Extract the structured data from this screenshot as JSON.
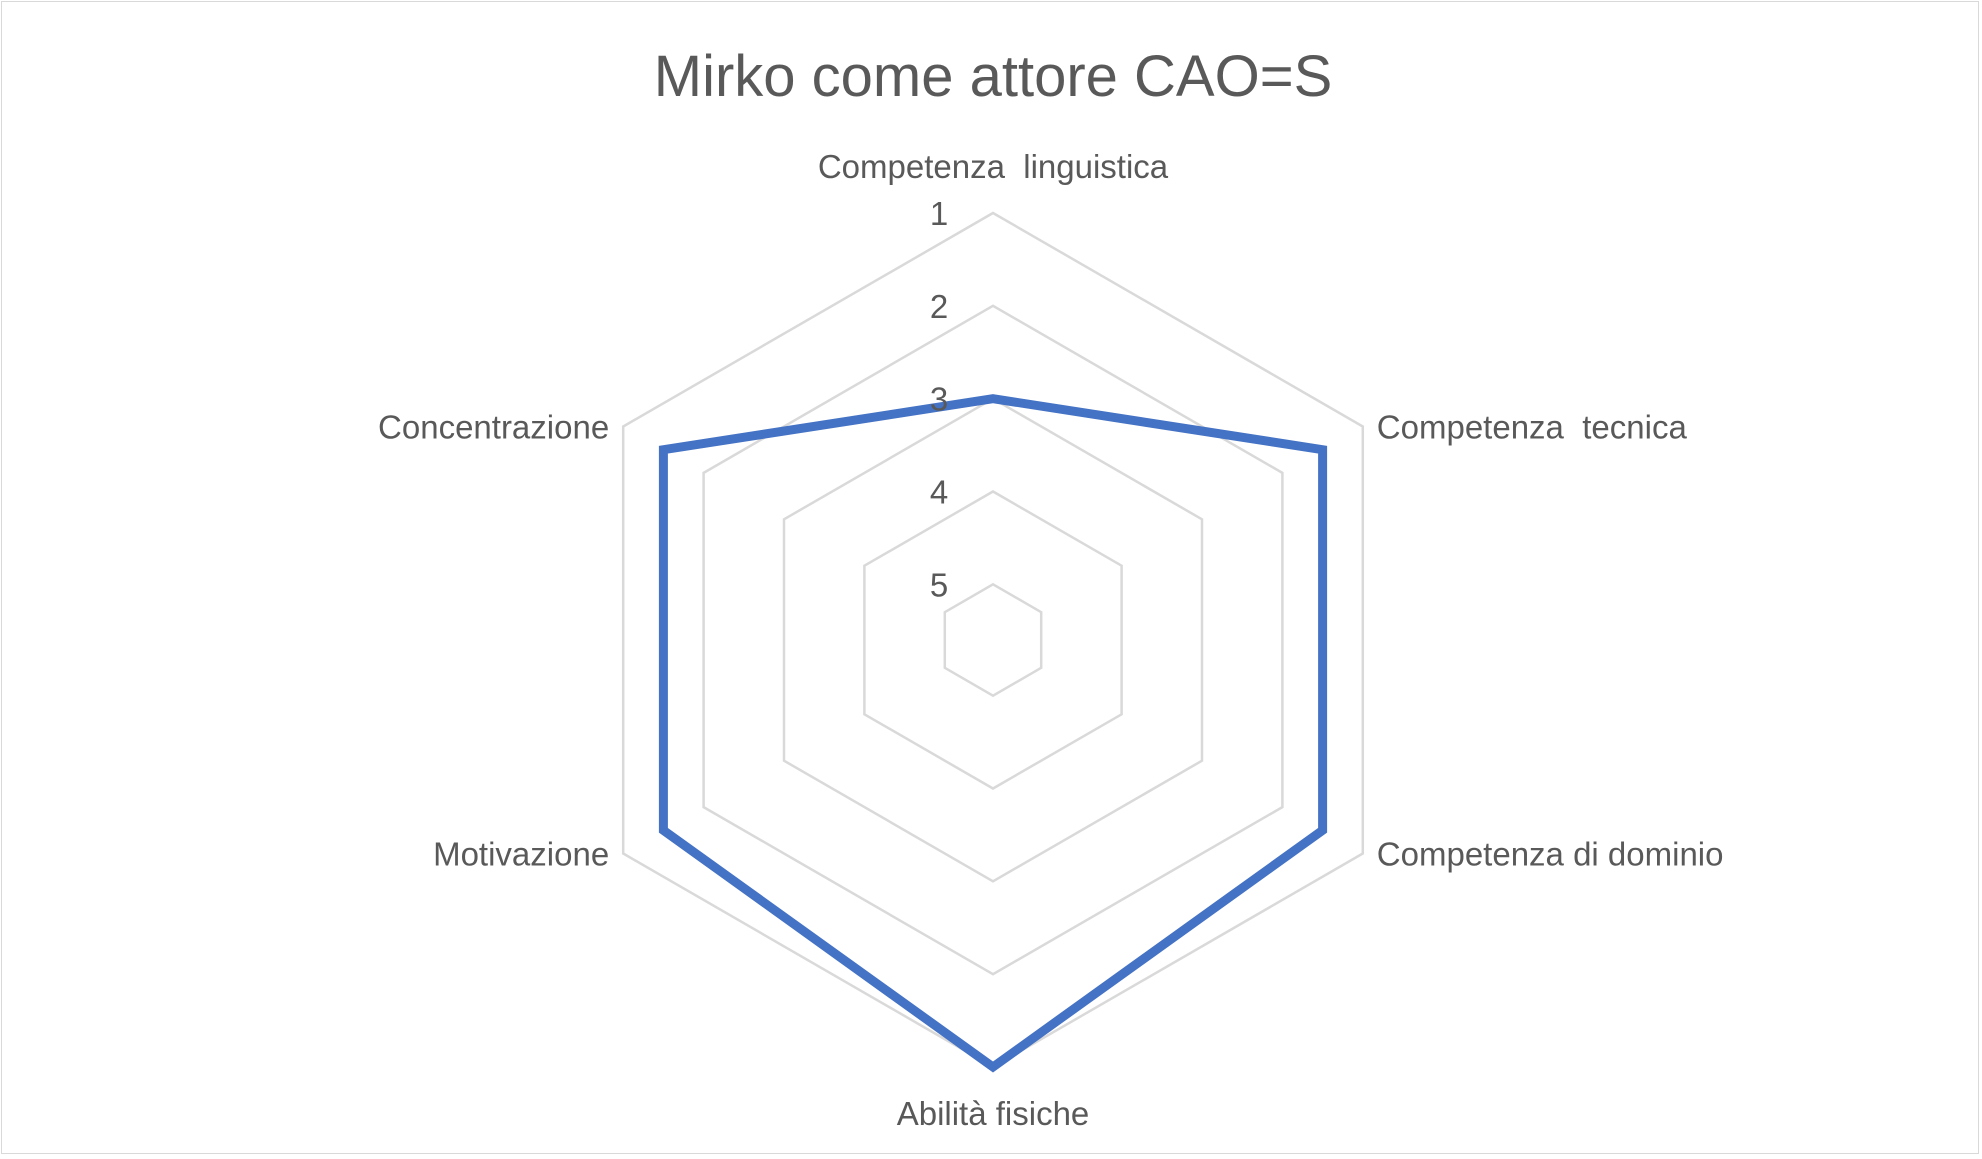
{
  "chart_data": {
    "type": "radar",
    "title": "Mirko come attore CAO=S",
    "categories": [
      "Competenza  linguistica",
      "Competenza  tecnica",
      "Competenza di dominio",
      "Abilità fisiche",
      "Motivazione",
      "Concentrazione"
    ],
    "axis": {
      "min": 1,
      "max": 5,
      "reversed": true,
      "ticks": [
        "1",
        "2",
        "3",
        "4",
        "5"
      ]
    },
    "grid": true,
    "legend": "none",
    "series": [
      {
        "values": [
          3,
          1.5,
          1.5,
          1,
          1.5,
          1.5
        ],
        "color": "#4472c4"
      }
    ]
  }
}
